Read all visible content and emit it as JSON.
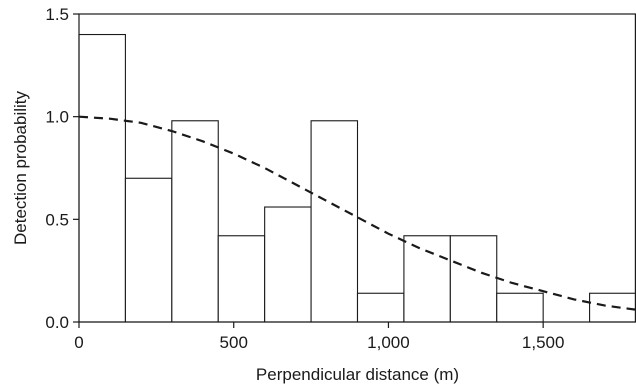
{
  "chart_data": {
    "type": "bar",
    "title": "",
    "xlabel": "Perpendicular distance (m)",
    "ylabel": "Detection probability",
    "xlim": [
      0,
      1800
    ],
    "ylim": [
      0,
      1.5
    ],
    "grid": false,
    "legend": "none",
    "x_ticks": [
      0,
      500,
      1000,
      1500
    ],
    "x_tick_labels": [
      "0",
      "500",
      "1,000",
      "1,500"
    ],
    "y_ticks": [
      0,
      0.5,
      1.0,
      1.5
    ],
    "y_tick_labels": [
      "0.0",
      "0.5",
      "1.0",
      "1.5"
    ],
    "bin_edges": [
      0,
      150,
      300,
      450,
      600,
      750,
      900,
      1050,
      1200,
      1350,
      1500,
      1650,
      1800
    ],
    "values": [
      1.4,
      0.7,
      0.98,
      0.42,
      0.56,
      0.98,
      0.14,
      0.42,
      0.42,
      0.14,
      0.0,
      0.14
    ],
    "curve": {
      "style": "dashed",
      "x": [
        0,
        100,
        200,
        300,
        400,
        500,
        600,
        700,
        800,
        900,
        1000,
        1100,
        1200,
        1300,
        1400,
        1500,
        1600,
        1700,
        1800
      ],
      "y": [
        1.0,
        0.99,
        0.97,
        0.93,
        0.88,
        0.82,
        0.75,
        0.67,
        0.59,
        0.51,
        0.43,
        0.36,
        0.3,
        0.24,
        0.19,
        0.15,
        0.11,
        0.08,
        0.06
      ]
    }
  }
}
